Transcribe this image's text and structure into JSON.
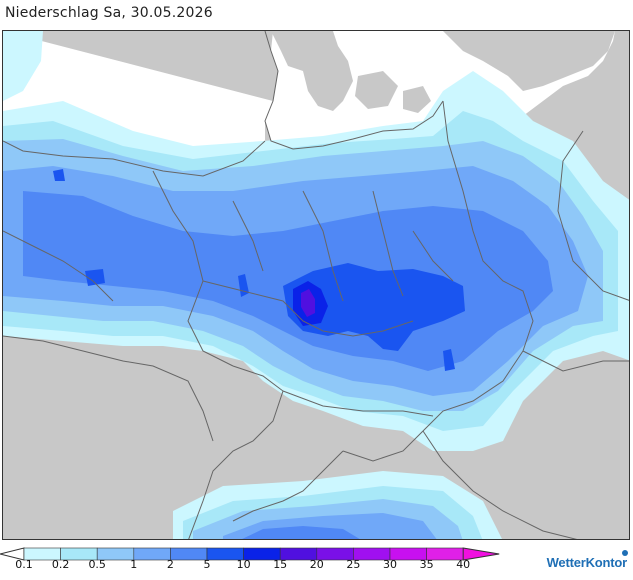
{
  "title": "Niederschlag Sa, 30.05.2026",
  "brand": "WetterKontor",
  "legend": {
    "unit": "",
    "ticks": [
      "0.1",
      "0.2",
      "0.5",
      "1",
      "2",
      "5",
      "10",
      "15",
      "20",
      "25",
      "30",
      "35",
      "40"
    ],
    "colors": [
      "#ffffff",
      "#ccf7ff",
      "#a8e8f8",
      "#8fc8f8",
      "#70a8f8",
      "#5088f5",
      "#1a55f0",
      "#0a22e8",
      "#5010e0",
      "#7a10e8",
      "#a010f0",
      "#c810f0",
      "#e020e8",
      "#f010e0"
    ]
  },
  "map": {
    "land_color": "#c8c8c8",
    "sea_color": "#ffffff",
    "border_color": "#666666"
  }
}
